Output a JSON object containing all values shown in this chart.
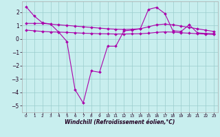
{
  "xlabel": "Windchill (Refroidissement éolien,°C)",
  "bg_color": "#c8eeee",
  "line_color": "#aa00aa",
  "grid_color": "#99cccc",
  "hours": [
    0,
    1,
    2,
    3,
    4,
    5,
    6,
    7,
    8,
    9,
    10,
    11,
    12,
    13,
    14,
    15,
    16,
    17,
    18,
    19,
    20,
    21,
    22,
    23
  ],
  "series1": [
    2.4,
    1.7,
    1.2,
    1.1,
    0.5,
    -0.2,
    -3.8,
    -4.8,
    -2.4,
    -2.5,
    -0.55,
    -0.55,
    0.6,
    0.65,
    0.75,
    2.2,
    2.35,
    1.9,
    0.6,
    0.55,
    1.05,
    0.45,
    0.4,
    0.4
  ],
  "series2": [
    1.15,
    1.15,
    1.15,
    1.1,
    1.05,
    1.0,
    0.95,
    0.9,
    0.85,
    0.8,
    0.75,
    0.72,
    0.7,
    0.72,
    0.75,
    0.9,
    1.05,
    1.1,
    1.05,
    0.95,
    0.85,
    0.75,
    0.65,
    0.55
  ],
  "series3": [
    0.65,
    0.6,
    0.55,
    0.52,
    0.5,
    0.48,
    0.45,
    0.42,
    0.4,
    0.38,
    0.37,
    0.36,
    0.36,
    0.37,
    0.38,
    0.42,
    0.48,
    0.52,
    0.5,
    0.45,
    0.42,
    0.38,
    0.35,
    0.32
  ],
  "ylim": [
    -5.5,
    2.8
  ],
  "yticks": [
    -5,
    -4,
    -3,
    -2,
    -1,
    0,
    1,
    2
  ],
  "xlim": [
    -0.5,
    23.5
  ],
  "xticks": [
    0,
    1,
    2,
    3,
    4,
    5,
    6,
    7,
    8,
    9,
    10,
    11,
    12,
    13,
    14,
    15,
    16,
    17,
    18,
    19,
    20,
    21,
    22,
    23
  ]
}
